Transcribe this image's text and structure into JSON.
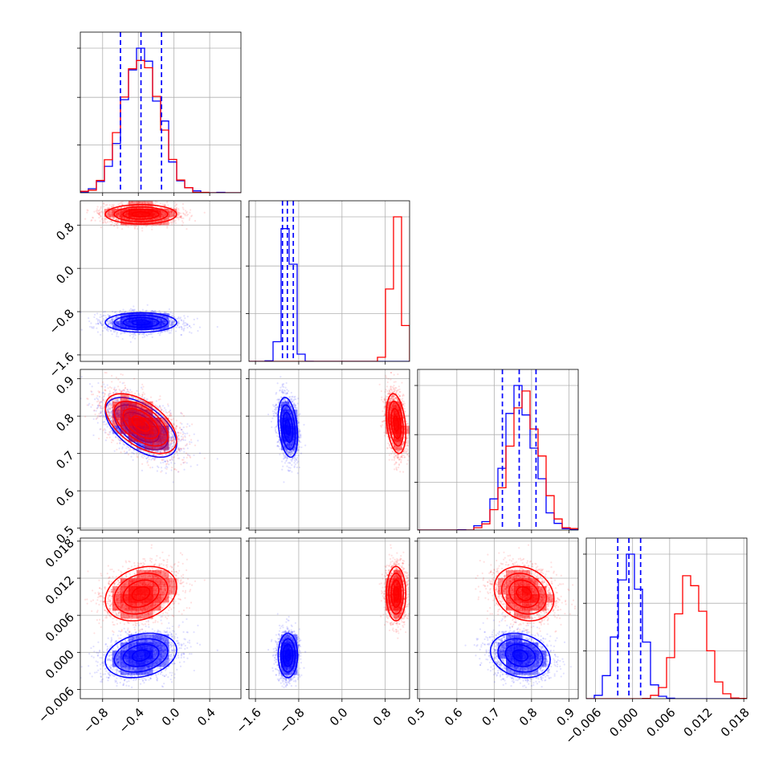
{
  "colors": {
    "series_a": "#0000ff",
    "series_b": "#ff0000",
    "grid": "#b0b0b0"
  },
  "chart_data": {
    "type": "corner",
    "grid": true,
    "n_params": 4,
    "axis_ranges": [
      [
        -1.05,
        0.75
      ],
      [
        -1.72,
        1.25
      ],
      [
        0.495,
        0.925
      ],
      [
        -0.0075,
        0.0185
      ]
    ],
    "ticks": [
      {
        "values": [
          -0.8,
          -0.4,
          0.0,
          0.4
        ],
        "labels": [
          "−0.8",
          "−0.4",
          "0.0",
          "0.4"
        ]
      },
      {
        "values": [
          -1.6,
          -0.8,
          0.0,
          0.8
        ],
        "labels": [
          "−1.6",
          "−0.8",
          "0.0",
          "0.8"
        ]
      },
      {
        "values": [
          0.5,
          0.6,
          0.7,
          0.8,
          0.9
        ],
        "labels": [
          "0.5",
          "0.6",
          "0.7",
          "0.8",
          "0.9"
        ]
      },
      {
        "values": [
          -0.006,
          0.0,
          0.006,
          0.012,
          0.018
        ],
        "labels": [
          "−0.006",
          "0.000",
          "0.006",
          "0.012",
          "0.018"
        ]
      }
    ],
    "quantiles_series": "series_a",
    "series": [
      {
        "key": "series_a",
        "means": [
          -0.37,
          -1.0,
          0.77,
          -0.0005
        ],
        "sds": [
          0.2,
          0.09,
          0.04,
          0.0018
        ],
        "quantiles": [
          [
            -0.6,
            -0.37,
            -0.14
          ],
          [
            -1.1,
            -1.01,
            -0.9
          ],
          [
            0.722,
            0.767,
            0.812
          ],
          [
            -0.0024,
            -0.0006,
            0.0013
          ]
        ],
        "correlations": [
          [
            0,
            2,
            -0.55
          ],
          [
            0,
            3,
            0.25
          ],
          [
            2,
            3,
            -0.2
          ],
          [
            1,
            2,
            -0.3
          ]
        ]
      },
      {
        "key": "series_b",
        "means": [
          -0.37,
          1.0,
          0.78,
          0.0095
        ],
        "sds": [
          0.2,
          0.09,
          0.04,
          0.0022
        ],
        "correlations": [
          [
            0,
            2,
            -0.55
          ],
          [
            0,
            3,
            0.25
          ],
          [
            2,
            3,
            -0.2
          ],
          [
            1,
            2,
            -0.3
          ]
        ]
      }
    ]
  }
}
